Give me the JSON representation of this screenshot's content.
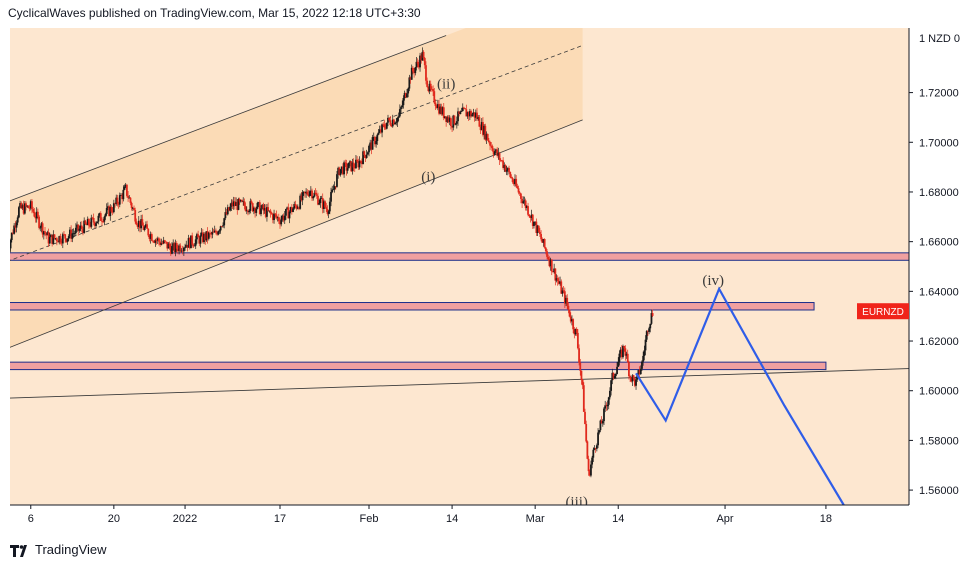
{
  "header": {
    "published_text": "CyclicalWaves published on TradingView.com, Mar 15, 2022 12:18 UTC+3:30"
  },
  "footer": {
    "brand": "TradingView",
    "logo_icon": "tradingview-logo-icon"
  },
  "chart_data": {
    "type": "candlestick",
    "symbol_label": "EURNZD",
    "currency_label": "1 NZD 0",
    "last_price": 1.632,
    "y_ticks": [
      "1.72000",
      "1.70000",
      "1.68000",
      "1.66000",
      "1.64000",
      "1.62000",
      "1.60000",
      "1.58000",
      "1.56000"
    ],
    "y_tick_values": [
      1.72,
      1.7,
      1.68,
      1.66,
      1.64,
      1.62,
      1.6,
      1.58,
      1.56
    ],
    "ylim": [
      1.554,
      1.746
    ],
    "x_ticks": [
      {
        "label": "6",
        "t": 6
      },
      {
        "label": "20",
        "t": 20
      },
      {
        "label": "2022",
        "t": 32
      },
      {
        "label": "17",
        "t": 48
      },
      {
        "label": "Feb",
        "t": 63
      },
      {
        "label": "14",
        "t": 77
      },
      {
        "label": "Mar",
        "t": 91
      },
      {
        "label": "14",
        "t": 105
      },
      {
        "label": "Apr",
        "t": 123
      },
      {
        "label": "18",
        "t": 140
      }
    ],
    "xlim": [
      2.5,
      154
    ],
    "price_path": [
      [
        2,
        1.656
      ],
      [
        4,
        1.673
      ],
      [
        6,
        1.674
      ],
      [
        9,
        1.661
      ],
      [
        12,
        1.662
      ],
      [
        15,
        1.666
      ],
      [
        18,
        1.67
      ],
      [
        20,
        1.674
      ],
      [
        22,
        1.681
      ],
      [
        24,
        1.668
      ],
      [
        27,
        1.661
      ],
      [
        30,
        1.657
      ],
      [
        33,
        1.66
      ],
      [
        37,
        1.663
      ],
      [
        40,
        1.675
      ],
      [
        44,
        1.674
      ],
      [
        48,
        1.669
      ],
      [
        51,
        1.675
      ],
      [
        53,
        1.681
      ],
      [
        56,
        1.673
      ],
      [
        58,
        1.689
      ],
      [
        61,
        1.691
      ],
      [
        64,
        1.701
      ],
      [
        66,
        1.708
      ],
      [
        68,
        1.71
      ],
      [
        70,
        1.727
      ],
      [
        72,
        1.735
      ],
      [
        73,
        1.722
      ],
      [
        75,
        1.713
      ],
      [
        77,
        1.708
      ],
      [
        79,
        1.712
      ],
      [
        81,
        1.711
      ],
      [
        84,
        1.697
      ],
      [
        86,
        1.69
      ],
      [
        88,
        1.681
      ],
      [
        90,
        1.672
      ],
      [
        92,
        1.661
      ],
      [
        94,
        1.649
      ],
      [
        96,
        1.637
      ],
      [
        98,
        1.622
      ],
      [
        99,
        1.6
      ],
      [
        100,
        1.566
      ],
      [
        101,
        1.577
      ],
      [
        103,
        1.594
      ],
      [
        104,
        1.605
      ],
      [
        106,
        1.618
      ],
      [
        107,
        1.606
      ],
      [
        108,
        1.603
      ],
      [
        109,
        1.611
      ],
      [
        110,
        1.626
      ],
      [
        111,
        1.633
      ]
    ],
    "channel": {
      "upper": [
        [
          2,
          1.676
        ],
        [
          76,
          1.743
        ]
      ],
      "middle": [
        [
          2,
          1.652
        ],
        [
          99,
          1.739
        ]
      ],
      "lower": [
        [
          2,
          1.617
        ],
        [
          99,
          1.709
        ]
      ]
    },
    "trendline": [
      [
        2,
        1.597
      ],
      [
        155,
        1.609
      ]
    ],
    "zones": [
      {
        "from_t": 2,
        "to_t": 155,
        "low": 1.6525,
        "high": 1.6555
      },
      {
        "from_t": 2,
        "to_t": 138,
        "low": 1.6325,
        "high": 1.6355
      },
      {
        "from_t": 2,
        "to_t": 140,
        "low": 1.6085,
        "high": 1.6115
      }
    ],
    "projection": [
      [
        108,
        1.607
      ],
      [
        113,
        1.588
      ],
      [
        122,
        1.641
      ],
      [
        133,
        1.594
      ],
      [
        143,
        1.554
      ]
    ],
    "wave_labels": [
      {
        "text": "(ii)",
        "t": 76,
        "v": 1.7237
      },
      {
        "text": "(i)",
        "t": 73,
        "v": 1.6863
      },
      {
        "text": "(iv)",
        "t": 121,
        "v": 1.6445
      },
      {
        "text": "(iii)",
        "t": 98,
        "v": 1.5555
      }
    ],
    "colors": {
      "background_zone": "#fde7d0",
      "channel_fill": "#fad8b2",
      "zone_fill": "#f0a0a0",
      "zone_border": "#1c2d8a",
      "candle_up": "#1a1a1a",
      "candle_down": "#e0291d",
      "projection": "#2f5de8",
      "symbol_tag": "#f0241a"
    }
  }
}
